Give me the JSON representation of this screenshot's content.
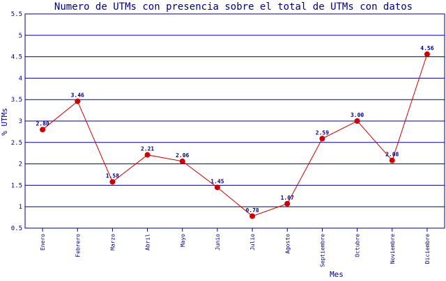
{
  "chart_data": {
    "type": "line",
    "title": "Numero de UTMs con presencia sobre el total de UTMs con datos",
    "xlabel": "Mes",
    "ylabel": "% UTMs",
    "categories": [
      "Enero",
      "Febrero",
      "Marzo",
      "Abril",
      "Mayo",
      "Junio",
      "Julio",
      "Agosto",
      "Septiembre",
      "Octubre",
      "Noviembre",
      "Diciembre"
    ],
    "series": [
      {
        "values": [
          2.8,
          3.46,
          1.58,
          2.21,
          2.06,
          1.45,
          0.78,
          1.07,
          2.59,
          3.0,
          2.08,
          4.56
        ],
        "labels": [
          "2.80",
          "3.46",
          "1.58",
          "2.21",
          "2.06",
          "1.45",
          "0.78",
          "1.07",
          "2.59",
          "3.00",
          "2.08",
          "4.56"
        ],
        "color": "#cc0000"
      }
    ],
    "ylim": [
      0.5,
      5.5
    ],
    "yticks": [
      "0.5",
      "1",
      "1.5",
      "2",
      "2.5",
      "3",
      "3.5",
      "4",
      "4.5",
      "5",
      "5.5"
    ],
    "grid": true,
    "legend": "none",
    "colors": {
      "text": "#000080",
      "grid": "#000080",
      "line": "#cc0000",
      "marker": "#cc0000"
    }
  }
}
